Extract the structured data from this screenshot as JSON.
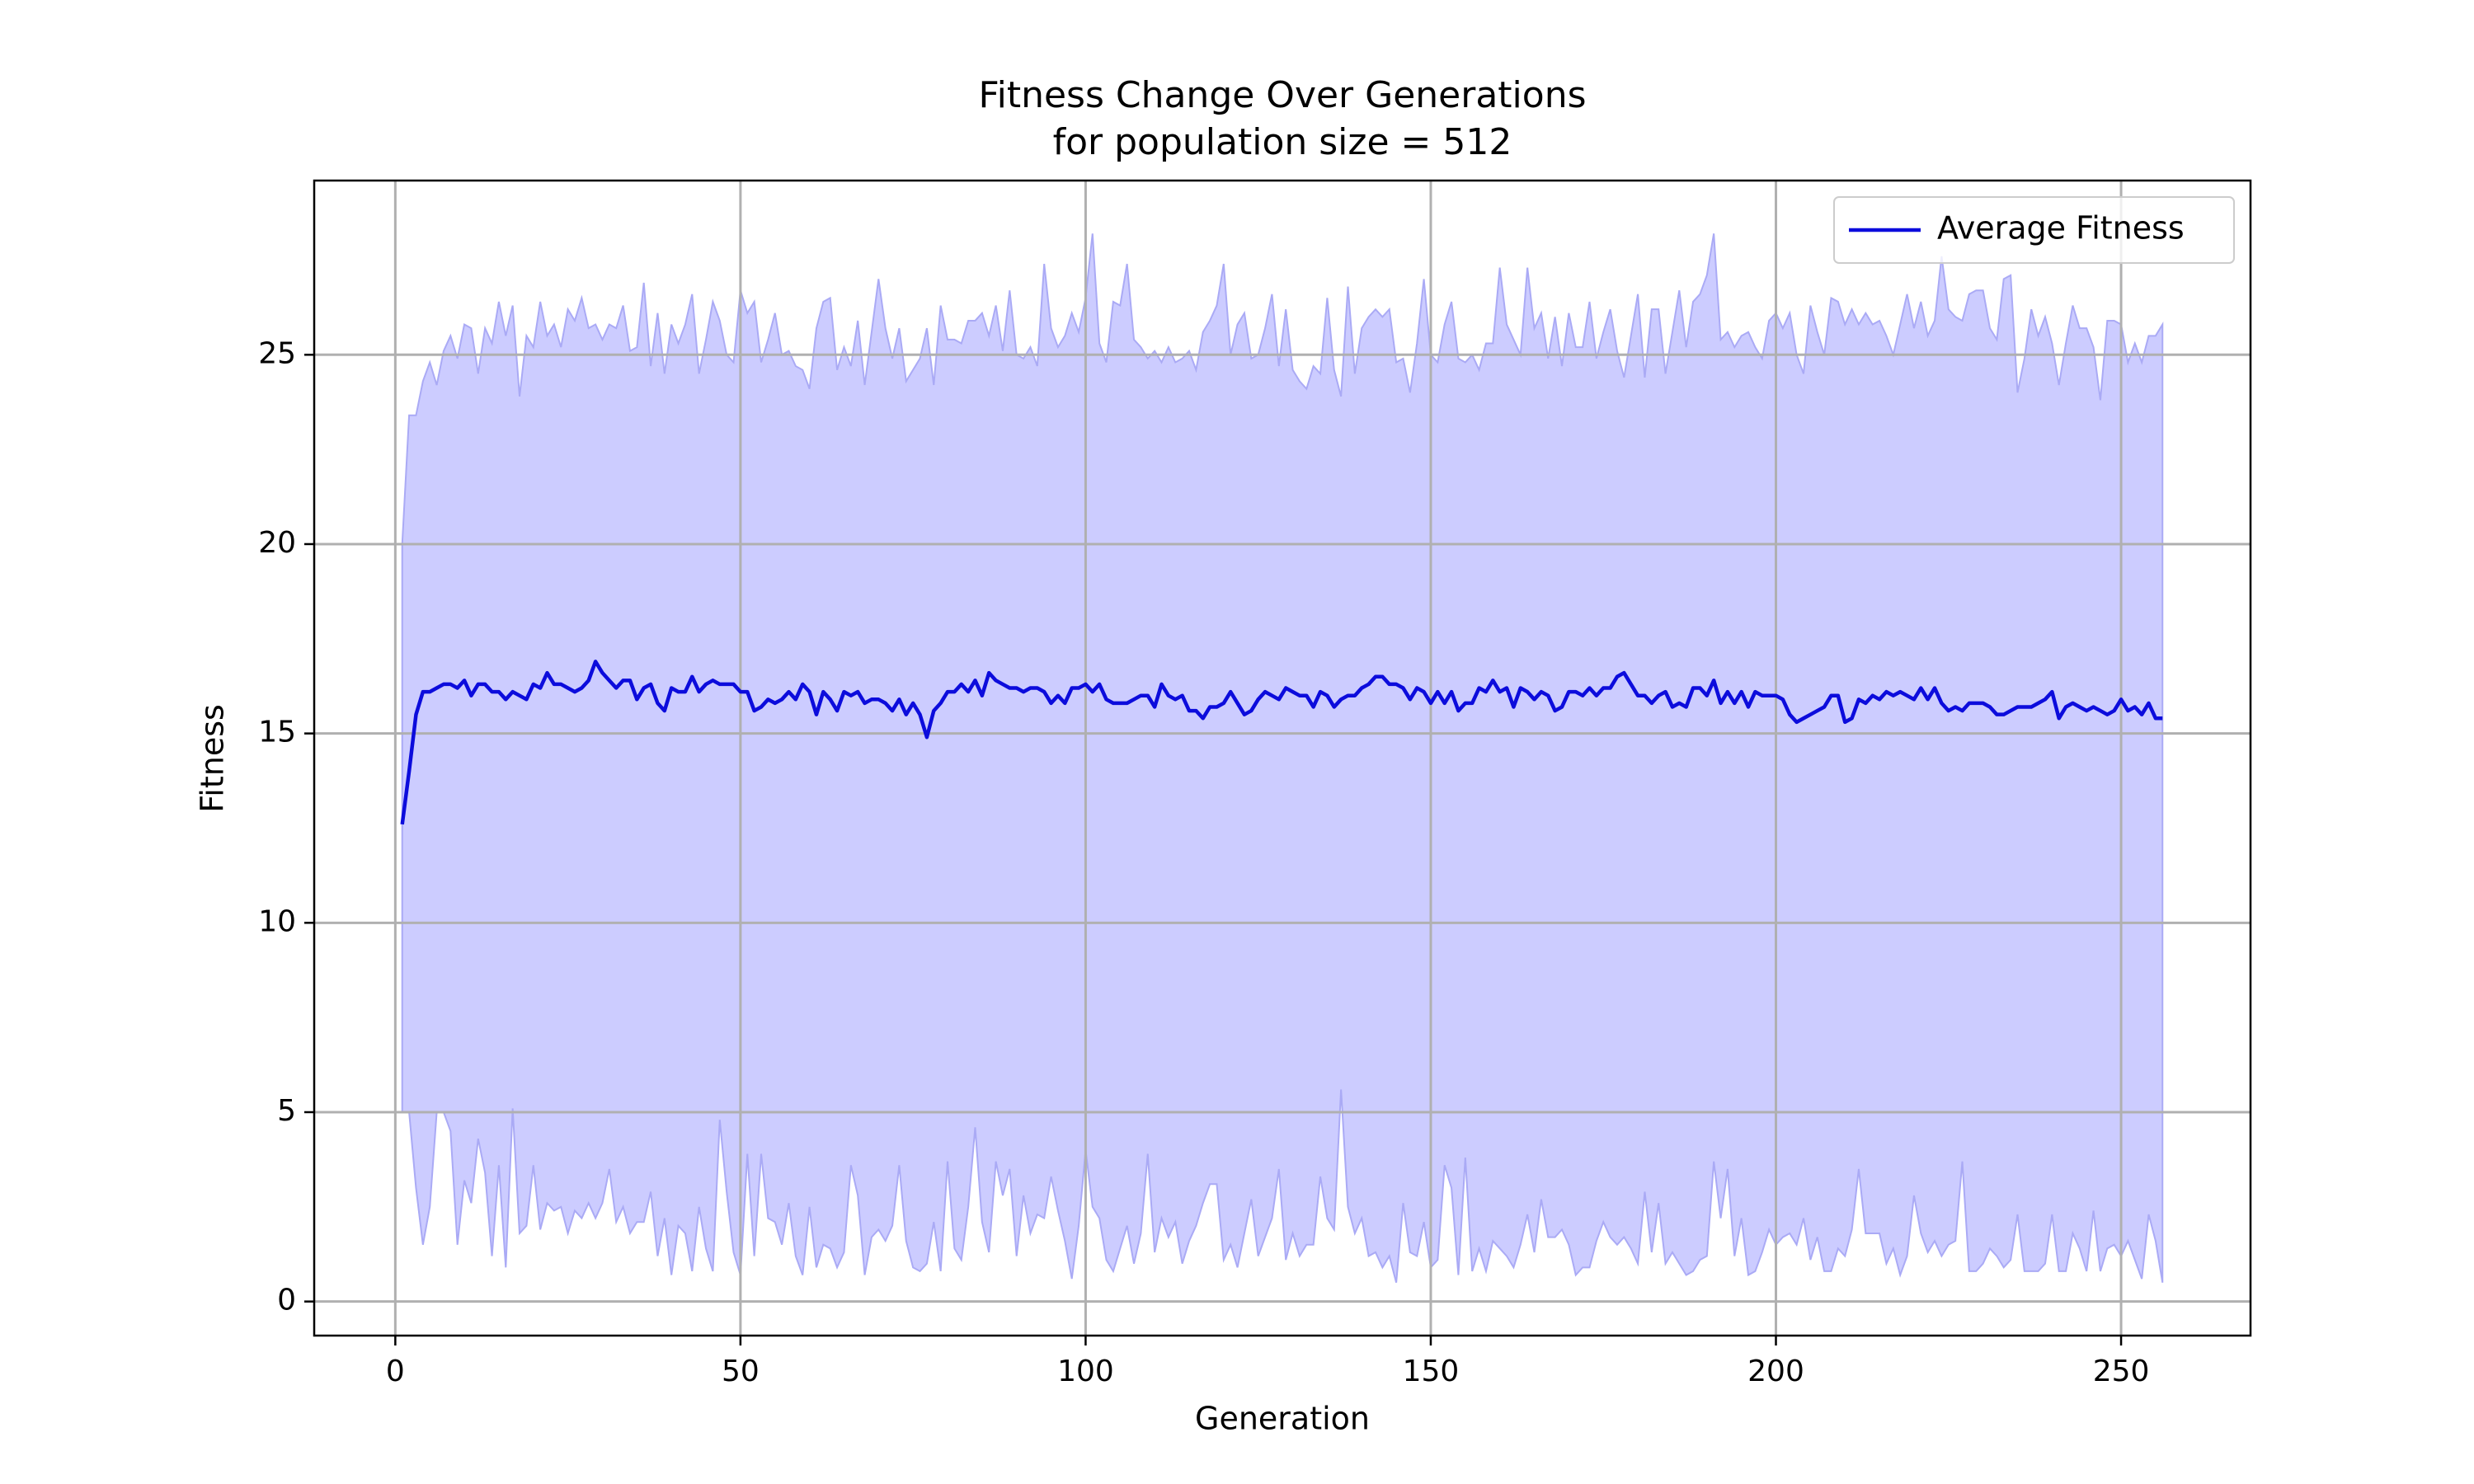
{
  "chart_data": {
    "type": "line",
    "title": "Fitness Change Over Generations",
    "subtitle": "for population size = 512",
    "x_label": "Generation",
    "y_label": "Fitness",
    "xlim": [
      -11.75,
      268.75
    ],
    "ylim": [
      -0.9,
      29.6
    ],
    "xticks": [
      0,
      50,
      100,
      150,
      200,
      250
    ],
    "yticks": [
      0,
      5,
      10,
      15,
      20,
      25
    ],
    "grid": true,
    "legend": "upper right",
    "x": [
      1,
      2,
      3,
      4,
      5,
      6,
      7,
      8,
      9,
      10,
      11,
      12,
      13,
      14,
      15,
      16,
      17,
      18,
      19,
      20,
      21,
      22,
      23,
      24,
      25,
      26,
      27,
      28,
      29,
      30,
      31,
      32,
      33,
      34,
      35,
      36,
      37,
      38,
      39,
      40,
      41,
      42,
      43,
      44,
      45,
      46,
      47,
      48,
      49,
      50,
      51,
      52,
      53,
      54,
      55,
      56,
      57,
      58,
      59,
      60,
      61,
      62,
      63,
      64,
      65,
      66,
      67,
      68,
      69,
      70,
      71,
      72,
      73,
      74,
      75,
      76,
      77,
      78,
      79,
      80,
      81,
      82,
      83,
      84,
      85,
      86,
      87,
      88,
      89,
      90,
      91,
      92,
      93,
      94,
      95,
      96,
      97,
      98,
      99,
      100,
      101,
      102,
      103,
      104,
      105,
      106,
      107,
      108,
      109,
      110,
      111,
      112,
      113,
      114,
      115,
      116,
      117,
      118,
      119,
      120,
      121,
      122,
      123,
      124,
      125,
      126,
      127,
      128,
      129,
      130,
      131,
      132,
      133,
      134,
      135,
      136,
      137,
      138,
      139,
      140,
      141,
      142,
      143,
      144,
      145,
      146,
      147,
      148,
      149,
      150,
      151,
      152,
      153,
      154,
      155,
      156,
      157,
      158,
      159,
      160,
      161,
      162,
      163,
      164,
      165,
      166,
      167,
      168,
      169,
      170,
      171,
      172,
      173,
      174,
      175,
      176,
      177,
      178,
      179,
      180,
      181,
      182,
      183,
      184,
      185,
      186,
      187,
      188,
      189,
      190,
      191,
      192,
      193,
      194,
      195,
      196,
      197,
      198,
      199,
      200,
      201,
      202,
      203,
      204,
      205,
      206,
      207,
      208,
      209,
      210,
      211,
      212,
      213,
      214,
      215,
      216,
      217,
      218,
      219,
      220,
      221,
      222,
      223,
      224,
      225,
      226,
      227,
      228,
      229,
      230,
      231,
      232,
      233,
      234,
      235,
      236,
      237,
      238,
      239,
      240,
      241,
      242,
      243,
      244,
      245,
      246,
      247,
      248,
      249,
      250,
      251,
      252,
      253,
      254,
      255,
      256
    ],
    "series": [
      {
        "name": "Average Fitness",
        "color": "#0c0cdc",
        "values": [
          12.6,
          14.0,
          15.5,
          16.1,
          16.1,
          16.2,
          16.3,
          16.3,
          16.2,
          16.4,
          16.0,
          16.3,
          16.3,
          16.1,
          16.1,
          15.9,
          16.1,
          16.0,
          15.9,
          16.3,
          16.2,
          16.6,
          16.3,
          16.3,
          16.2,
          16.1,
          16.2,
          16.4,
          16.9,
          16.6,
          16.4,
          16.2,
          16.4,
          16.4,
          15.9,
          16.2,
          16.3,
          15.8,
          15.6,
          16.2,
          16.1,
          16.1,
          16.5,
          16.1,
          16.3,
          16.4,
          16.3,
          16.3,
          16.3,
          16.1,
          16.1,
          15.6,
          15.7,
          15.9,
          15.8,
          15.9,
          16.1,
          15.9,
          16.3,
          16.1,
          15.5,
          16.1,
          15.9,
          15.6,
          16.1,
          16.0,
          16.1,
          15.8,
          15.9,
          15.9,
          15.8,
          15.6,
          15.9,
          15.5,
          15.8,
          15.5,
          14.9,
          15.6,
          15.8,
          16.1,
          16.1,
          16.3,
          16.1,
          16.4,
          16.0,
          16.6,
          16.4,
          16.3,
          16.2,
          16.2,
          16.1,
          16.2,
          16.2,
          16.1,
          15.8,
          16.0,
          15.8,
          16.2,
          16.2,
          16.3,
          16.1,
          16.3,
          15.9,
          15.8,
          15.8,
          15.8,
          15.9,
          16.0,
          16.0,
          15.7,
          16.3,
          16.0,
          15.9,
          16.0,
          15.6,
          15.6,
          15.4,
          15.7,
          15.7,
          15.8,
          16.1,
          15.8,
          15.5,
          15.6,
          15.9,
          16.1,
          16.0,
          15.9,
          16.2,
          16.1,
          16.0,
          16.0,
          15.7,
          16.1,
          16.0,
          15.7,
          15.9,
          16.0,
          16.0,
          16.2,
          16.3,
          16.5,
          16.5,
          16.3,
          16.3,
          16.2,
          15.9,
          16.2,
          16.1,
          15.8,
          16.1,
          15.8,
          16.1,
          15.6,
          15.8,
          15.8,
          16.2,
          16.1,
          16.4,
          16.1,
          16.2,
          15.7,
          16.2,
          16.1,
          15.9,
          16.1,
          16.0,
          15.6,
          15.7,
          16.1,
          16.1,
          16.0,
          16.2,
          16.0,
          16.2,
          16.2,
          16.5,
          16.6,
          16.3,
          16.0,
          16.0,
          15.8,
          16.0,
          16.1,
          15.7,
          15.8,
          15.7,
          16.2,
          16.2,
          16.0,
          16.4,
          15.8,
          16.1,
          15.8,
          16.1,
          15.7,
          16.1,
          16.0,
          16.0,
          16.0,
          15.9,
          15.5,
          15.3,
          15.4,
          15.5,
          15.6,
          15.7,
          16.0,
          16.0,
          15.3,
          15.4,
          15.9,
          15.8,
          16.0,
          15.9,
          16.1,
          16.0,
          16.1,
          16.0,
          15.9,
          16.2,
          15.9,
          16.2,
          15.8,
          15.6,
          15.7,
          15.6,
          15.8,
          15.8,
          15.8,
          15.7,
          15.5,
          15.5,
          15.6,
          15.7,
          15.7,
          15.7,
          15.8,
          15.9,
          16.1,
          15.4,
          15.7,
          15.8,
          15.7,
          15.6,
          15.7,
          15.6,
          15.5,
          15.6,
          15.9,
          15.6,
          15.7,
          15.5,
          15.8,
          15.4,
          15.4
        ]
      }
    ],
    "band": {
      "color": "#ccccff",
      "edge_color": "#aaaaf5",
      "upper": [
        20.0,
        23.4,
        23.4,
        24.3,
        24.8,
        24.2,
        25.1,
        25.5,
        24.9,
        25.8,
        25.7,
        24.5,
        25.7,
        25.3,
        26.4,
        25.5,
        26.3,
        23.9,
        25.5,
        25.2,
        26.4,
        25.5,
        25.8,
        25.2,
        26.2,
        25.9,
        26.5,
        25.7,
        25.8,
        25.4,
        25.8,
        25.7,
        26.3,
        25.1,
        25.2,
        26.9,
        24.7,
        26.1,
        24.5,
        25.8,
        25.3,
        25.8,
        26.6,
        24.5,
        25.4,
        26.4,
        25.9,
        25.0,
        24.8,
        26.7,
        26.1,
        26.4,
        24.8,
        25.4,
        26.1,
        25.0,
        25.1,
        24.7,
        24.6,
        24.1,
        25.7,
        26.4,
        26.5,
        24.6,
        25.2,
        24.7,
        25.9,
        24.2,
        25.6,
        27.0,
        25.7,
        24.9,
        25.7,
        24.3,
        24.6,
        24.9,
        25.7,
        24.2,
        26.3,
        25.4,
        25.4,
        25.3,
        25.9,
        25.9,
        26.1,
        25.5,
        26.3,
        25.1,
        26.7,
        25.0,
        24.9,
        25.2,
        24.7,
        27.4,
        25.7,
        25.2,
        25.5,
        26.1,
        25.6,
        26.5,
        28.2,
        25.3,
        24.8,
        26.4,
        26.3,
        27.4,
        25.4,
        25.2,
        24.9,
        25.1,
        24.8,
        25.2,
        24.8,
        24.9,
        25.1,
        24.6,
        25.6,
        25.9,
        26.3,
        27.4,
        25.0,
        25.8,
        26.1,
        24.9,
        25.0,
        25.7,
        26.6,
        24.7,
        26.2,
        24.6,
        24.3,
        24.1,
        24.7,
        24.5,
        26.5,
        24.6,
        23.9,
        26.8,
        24.5,
        25.7,
        26.0,
        26.2,
        26.0,
        26.2,
        24.8,
        24.9,
        24.0,
        25.3,
        27.0,
        25.0,
        24.8,
        25.8,
        26.4,
        24.9,
        24.8,
        25.0,
        24.6,
        25.3,
        25.3,
        27.3,
        25.8,
        25.4,
        25.0,
        27.3,
        25.7,
        26.1,
        24.9,
        26.0,
        24.7,
        26.1,
        25.2,
        25.2,
        26.4,
        24.9,
        25.6,
        26.2,
        25.1,
        24.4,
        25.5,
        26.6,
        24.4,
        26.2,
        26.2,
        24.5,
        25.6,
        26.7,
        25.2,
        26.4,
        26.6,
        27.1,
        28.2,
        25.4,
        25.6,
        25.2,
        25.5,
        25.6,
        25.2,
        24.9,
        25.9,
        26.1,
        25.7,
        26.1,
        25.0,
        24.5,
        26.3,
        25.6,
        25.0,
        26.5,
        26.4,
        25.8,
        26.2,
        25.8,
        26.1,
        25.8,
        25.9,
        25.5,
        25.0,
        25.8,
        26.6,
        25.7,
        26.4,
        25.5,
        25.9,
        27.6,
        26.2,
        26.0,
        25.9,
        26.6,
        26.7,
        26.7,
        25.7,
        25.4,
        27.0,
        27.1,
        24.0,
        24.9,
        26.2,
        25.5,
        26.0,
        25.3,
        24.2,
        25.3,
        26.3,
        25.7,
        25.7,
        25.2,
        23.8,
        25.9,
        25.9,
        25.8,
        24.8,
        25.3,
        24.8,
        25.5,
        25.5,
        25.8
      ],
      "lower": [
        5.0,
        5.0,
        3.0,
        1.5,
        2.5,
        5.0,
        5.0,
        4.5,
        1.5,
        3.2,
        2.6,
        4.3,
        3.4,
        1.2,
        3.6,
        0.9,
        5.1,
        1.8,
        2.0,
        3.6,
        1.9,
        2.6,
        2.4,
        2.5,
        1.8,
        2.4,
        2.2,
        2.6,
        2.2,
        2.6,
        3.5,
        2.1,
        2.5,
        1.8,
        2.1,
        2.1,
        2.9,
        1.2,
        2.2,
        0.7,
        2.0,
        1.8,
        0.8,
        2.5,
        1.4,
        0.8,
        4.8,
        2.9,
        1.3,
        0.7,
        3.9,
        1.2,
        3.9,
        2.2,
        2.1,
        1.5,
        2.6,
        1.2,
        0.7,
        2.5,
        0.9,
        1.5,
        1.4,
        0.9,
        1.3,
        3.6,
        2.8,
        0.7,
        1.7,
        1.9,
        1.6,
        2.0,
        3.6,
        1.6,
        0.9,
        0.8,
        1.0,
        2.1,
        0.8,
        3.7,
        1.4,
        1.1,
        2.5,
        4.6,
        2.1,
        1.3,
        3.7,
        2.8,
        3.5,
        1.2,
        2.8,
        1.8,
        2.3,
        2.2,
        3.3,
        2.4,
        1.6,
        0.6,
        2.0,
        4.0,
        2.5,
        2.2,
        1.1,
        0.8,
        1.4,
        2.0,
        1.0,
        1.8,
        3.9,
        1.3,
        2.2,
        1.7,
        2.1,
        1.0,
        1.6,
        2.0,
        2.6,
        3.1,
        3.1,
        1.1,
        1.5,
        0.9,
        1.8,
        2.7,
        1.2,
        1.7,
        2.2,
        3.5,
        1.1,
        1.8,
        1.2,
        1.5,
        1.5,
        3.3,
        2.2,
        1.9,
        5.6,
        2.5,
        1.8,
        2.2,
        1.2,
        1.3,
        0.9,
        1.2,
        0.5,
        2.6,
        1.3,
        1.2,
        2.1,
        0.9,
        1.1,
        3.6,
        3.0,
        0.7,
        3.8,
        0.8,
        1.4,
        0.8,
        1.6,
        1.4,
        1.2,
        0.9,
        1.5,
        2.3,
        1.3,
        2.7,
        1.7,
        1.7,
        1.9,
        1.5,
        0.7,
        0.9,
        0.9,
        1.6,
        2.1,
        1.7,
        1.5,
        1.7,
        1.4,
        1.0,
        2.9,
        1.3,
        2.6,
        1.0,
        1.3,
        1.0,
        0.7,
        0.8,
        1.1,
        1.2,
        3.7,
        2.2,
        3.5,
        1.2,
        2.2,
        0.7,
        0.8,
        1.3,
        1.9,
        1.5,
        1.7,
        1.8,
        1.5,
        2.2,
        1.1,
        1.7,
        0.8,
        0.8,
        1.4,
        1.2,
        1.9,
        3.5,
        1.8,
        1.8,
        1.8,
        1.0,
        1.4,
        0.7,
        1.2,
        2.8,
        1.8,
        1.3,
        1.6,
        1.2,
        1.5,
        1.6,
        3.7,
        0.8,
        0.8,
        1.0,
        1.4,
        1.2,
        0.9,
        1.1,
        2.3,
        0.8,
        0.8,
        0.8,
        1.0,
        2.3,
        0.8,
        0.8,
        1.8,
        1.4,
        0.8,
        2.4,
        0.8,
        1.4,
        1.5,
        1.2,
        1.6,
        1.1,
        0.6,
        2.3,
        1.6,
        0.5
      ]
    }
  }
}
